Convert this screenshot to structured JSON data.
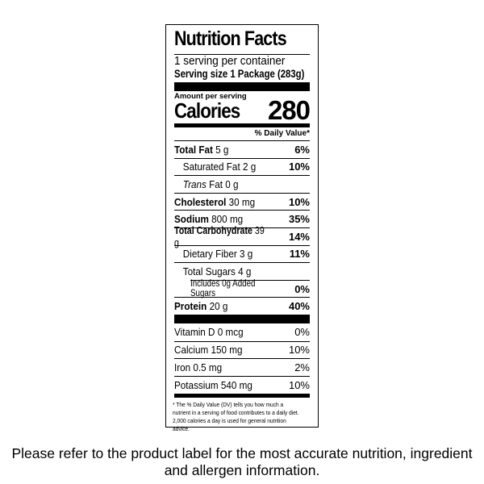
{
  "title": "Nutrition Facts",
  "servings": "1 serving per container",
  "serving_size": "Serving size 1 Package (283g)",
  "amount_per_serving": "Amount per serving",
  "calories_label": "Calories",
  "calories_value": "280",
  "dv_header": "% Daily Value*",
  "nutrients": [
    {
      "label": "Total Fat",
      "amount": "5 g",
      "dv": "6%"
    },
    {
      "label": "Saturated Fat",
      "amount": "2 g",
      "dv": "10%"
    },
    {
      "label": "Trans",
      "label_suffix": "Fat",
      "amount": "0 g",
      "dv": ""
    },
    {
      "label": "Cholesterol",
      "amount": "30 mg",
      "dv": "10%"
    },
    {
      "label": "Sodium",
      "amount": "800 mg",
      "dv": "35%"
    },
    {
      "label": "Total Carbohydrate",
      "amount": "39 g",
      "dv": "14%"
    },
    {
      "label": "Dietary Fiber",
      "amount": "3 g",
      "dv": "11%"
    },
    {
      "label": "Total Sugars",
      "amount": "4 g",
      "dv": ""
    },
    {
      "label": "Includes 0g Added Sugars",
      "amount": "",
      "dv": "0%"
    },
    {
      "label": "Protein",
      "amount": "20 g",
      "dv": "40%"
    }
  ],
  "vitamins": [
    {
      "label": "Vitamin D 0 mcg",
      "dv": "0%"
    },
    {
      "label": "Calcium 150 mg",
      "dv": "10%"
    },
    {
      "label": "Iron 0.5 mg",
      "dv": "2%"
    },
    {
      "label": "Potassium 540 mg",
      "dv": "10%"
    }
  ],
  "footnote": "* The % Daily Value (DV) tells you how much a nutrient in a serving of food contributes to a daily diet. 2,000 calories a day is used for general nutrition advice.",
  "disclaimer": "Please refer to the product label for the most accurate nutrition, ingredient and allergen information."
}
